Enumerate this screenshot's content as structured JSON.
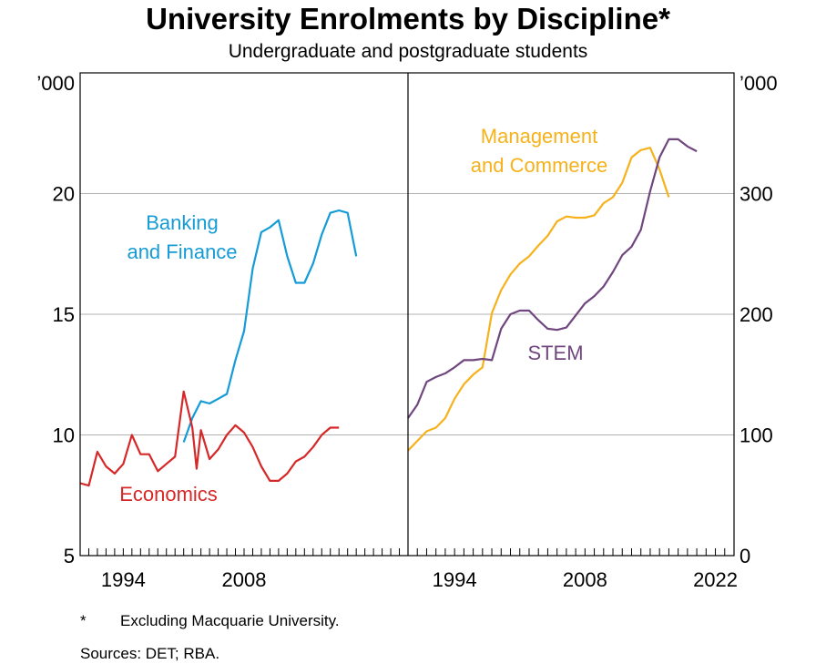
{
  "chart_data": {
    "type": "line",
    "title": "University Enrolments by Discipline*",
    "subtitle": "Undergraduate and postgraduate students",
    "panels": [
      {
        "unit": "’000",
        "ylim": [
          5,
          25
        ],
        "yticks": [
          "5",
          "10",
          "15",
          "20"
        ],
        "xlim": [
          1989,
          2027
        ],
        "xtick_labels": [
          "1994",
          "2008"
        ],
        "series": [
          {
            "name": "Banking and Finance",
            "label_lines": [
              "Banking",
              "and Finance"
            ],
            "color": "#159bd6",
            "x": [
              2001,
              2002,
              2003,
              2004,
              2005,
              2006,
              2007,
              2008,
              2009,
              2010,
              2011,
              2012,
              2013,
              2014,
              2015,
              2016,
              2017,
              2018,
              2019,
              2020,
              2021
            ],
            "y": [
              9.7,
              10.7,
              11.4,
              11.3,
              11.5,
              11.7,
              13.1,
              14.3,
              16.9,
              18.4,
              18.6,
              18.9,
              17.4,
              16.3,
              16.3,
              17.1,
              18.3,
              19.2,
              19.3,
              19.2,
              17.4
            ]
          },
          {
            "name": "Economics",
            "label_lines": [
              "Economics"
            ],
            "color": "#d62828",
            "x": [
              1989,
              1990,
              1991,
              1992,
              1993,
              1994,
              1995,
              1996,
              1997,
              1998,
              1999,
              2000,
              2001,
              2002,
              2002.5,
              2003,
              2004,
              2005,
              2006,
              2007,
              2008,
              2009,
              2010,
              2011,
              2012,
              2013,
              2014,
              2015,
              2016,
              2017,
              2018,
              2019,
              2020,
              2021
            ],
            "y": [
              8.0,
              7.9,
              9.3,
              8.7,
              8.4,
              8.8,
              10.0,
              9.2,
              9.2,
              8.5,
              8.8,
              9.1,
              11.8,
              10.3,
              8.6,
              10.2,
              9.0,
              9.4,
              10.0,
              10.4,
              10.1,
              9.5,
              8.7,
              8.1,
              8.1,
              8.4,
              8.9,
              9.1,
              9.5,
              10.0,
              10.3,
              10.3,
              null,
              null
            ]
          }
        ]
      },
      {
        "unit": "’000",
        "ylim": [
          0,
          400
        ],
        "yticks": [
          "0",
          "100",
          "200",
          "300"
        ],
        "xlim": [
          1989,
          2024
        ],
        "xtick_labels": [
          "1994",
          "2008",
          "2022"
        ],
        "series": [
          {
            "name": "Management and Commerce",
            "label_lines": [
              "Management",
              "and Commerce"
            ],
            "color": "#f5b21b",
            "x": [
              1989,
              1990,
              1991,
              1992,
              1993,
              1994,
              1995,
              1996,
              1997,
              1998,
              1999,
              2000,
              2001,
              2002,
              2003,
              2004,
              2005,
              2006,
              2007,
              2008,
              2009,
              2010,
              2011,
              2012,
              2013,
              2014,
              2015,
              2016,
              2017,
              2018,
              2019,
              2020,
              2021
            ],
            "y": [
              87,
              95,
              103,
              106,
              114,
              130,
              142,
              150,
              156,
              201,
              220,
              233,
              242,
              248,
              257,
              265,
              277,
              281,
              280,
              280,
              282,
              292,
              297,
              309,
              330,
              336,
              338,
              320,
              297,
              null,
              null,
              null,
              null
            ]
          },
          {
            "name": "STEM",
            "label_lines": [
              "STEM"
            ],
            "color": "#70467f",
            "x": [
              1989,
              1990,
              1991,
              1992,
              1993,
              1994,
              1995,
              1996,
              1997,
              1998,
              1999,
              2000,
              2001,
              2002,
              2003,
              2004,
              2005,
              2006,
              2007,
              2008,
              2009,
              2010,
              2011,
              2012,
              2013,
              2014,
              2015,
              2016,
              2017,
              2018,
              2019,
              2020,
              2021
            ],
            "y": [
              114,
              125,
              144,
              148,
              151,
              156,
              162,
              162,
              163,
              162,
              188,
              200,
              203,
              203,
              195,
              188,
              187,
              189,
              199,
              209,
              215,
              223,
              235,
              249,
              256,
              270,
              302,
              330,
              345,
              345,
              339,
              335,
              null
            ]
          }
        ]
      }
    ]
  },
  "footnote": {
    "symbol": "*",
    "text": "Excluding Macquarie University."
  },
  "sources": "Sources: DET; RBA."
}
